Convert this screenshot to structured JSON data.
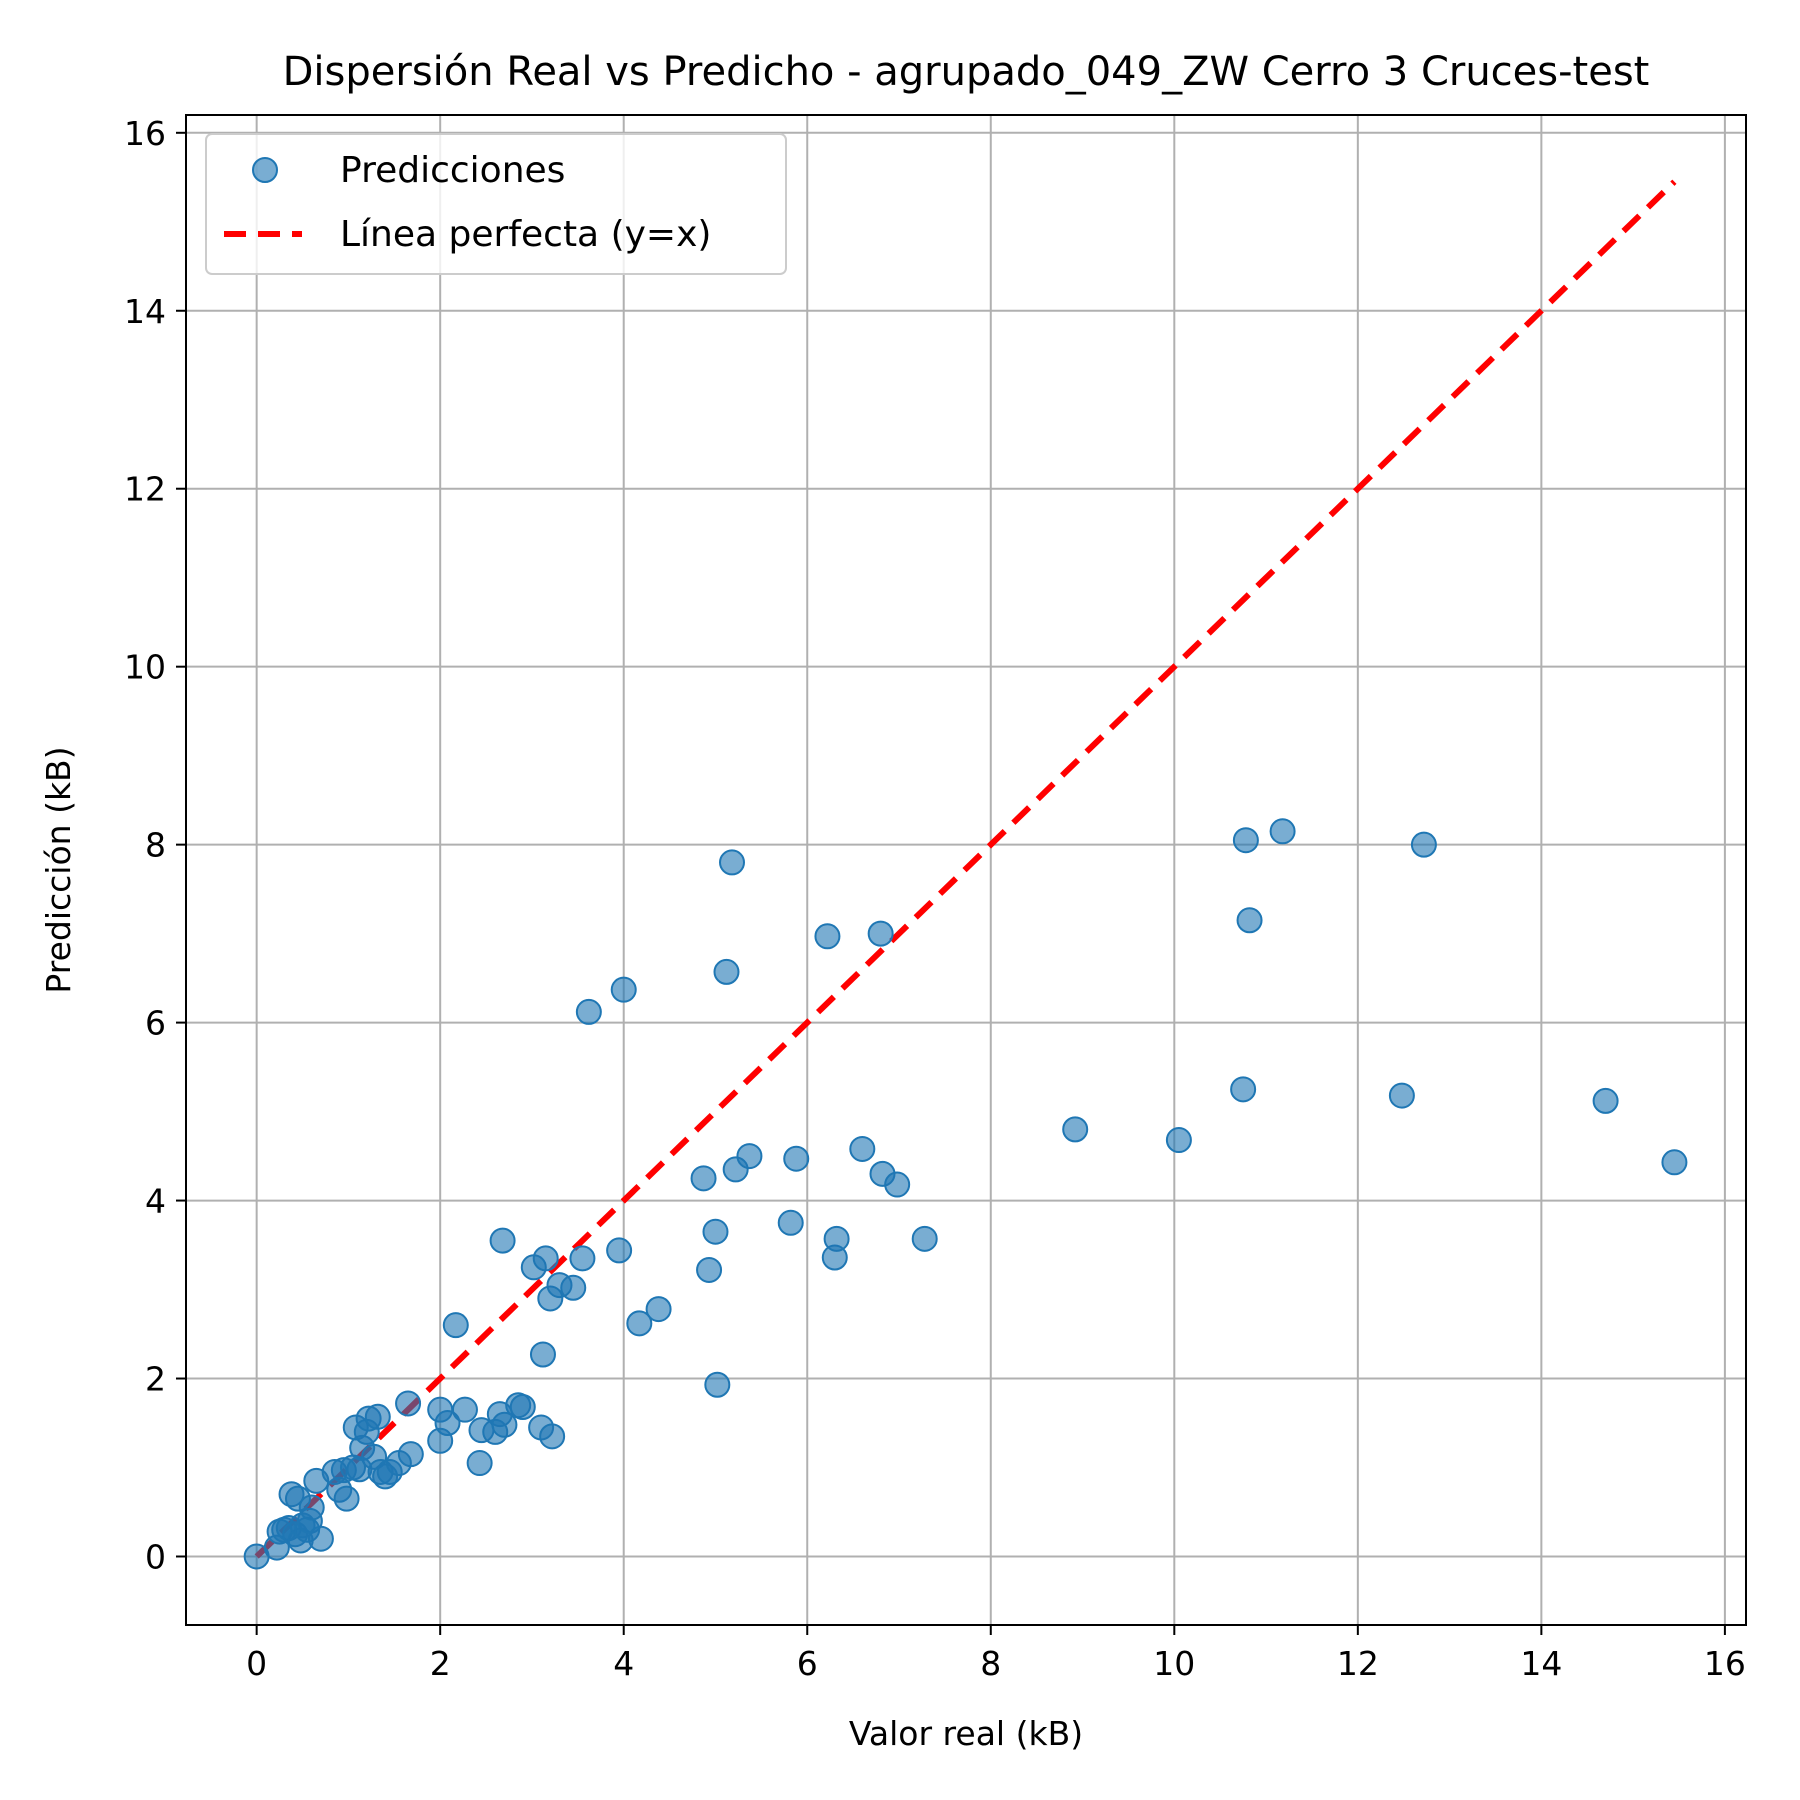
{
  "chart_data": {
    "type": "scatter",
    "title": "Dispersión Real vs Predicho - agrupado_049_ZW Cerro 3 Cruces-test",
    "xlabel": "Valor real (kB)",
    "ylabel": "Predicción (kB)",
    "xlim": [
      -0.77,
      16.23
    ],
    "ylim": [
      -0.77,
      16.2
    ],
    "xticks": [
      0,
      2,
      4,
      6,
      8,
      10,
      12,
      14,
      16
    ],
    "yticks": [
      0,
      2,
      4,
      6,
      8,
      10,
      12,
      14,
      16
    ],
    "grid": true,
    "legend_position": "upper-left",
    "colors": {
      "points": "#1f77b4",
      "line": "#ff0000",
      "grid": "#b0b0b0"
    },
    "series": [
      {
        "name": "Predicciones",
        "kind": "scatter",
        "points": [
          [
            0.0,
            0.0
          ],
          [
            0.22,
            0.1
          ],
          [
            0.25,
            0.28
          ],
          [
            0.3,
            0.3
          ],
          [
            0.35,
            0.32
          ],
          [
            0.38,
            0.7
          ],
          [
            0.42,
            0.25
          ],
          [
            0.45,
            0.65
          ],
          [
            0.48,
            0.18
          ],
          [
            0.5,
            0.35
          ],
          [
            0.55,
            0.3
          ],
          [
            0.58,
            0.4
          ],
          [
            0.6,
            0.55
          ],
          [
            0.65,
            0.85
          ],
          [
            0.7,
            0.2
          ],
          [
            0.85,
            0.95
          ],
          [
            0.9,
            0.75
          ],
          [
            0.95,
            0.97
          ],
          [
            0.98,
            0.65
          ],
          [
            1.05,
            1.0
          ],
          [
            1.08,
            1.45
          ],
          [
            1.12,
            0.98
          ],
          [
            1.15,
            1.22
          ],
          [
            1.2,
            1.4
          ],
          [
            1.22,
            1.55
          ],
          [
            1.28,
            1.12
          ],
          [
            1.32,
            1.57
          ],
          [
            1.35,
            0.95
          ],
          [
            1.4,
            0.9
          ],
          [
            1.45,
            0.95
          ],
          [
            1.55,
            1.05
          ],
          [
            1.65,
            1.72
          ],
          [
            1.68,
            1.15
          ],
          [
            2.0,
            1.65
          ],
          [
            2.0,
            1.3
          ],
          [
            2.08,
            1.5
          ],
          [
            2.17,
            2.6
          ],
          [
            2.27,
            1.65
          ],
          [
            2.43,
            1.05
          ],
          [
            2.45,
            1.42
          ],
          [
            2.6,
            1.4
          ],
          [
            2.65,
            1.6
          ],
          [
            2.68,
            3.55
          ],
          [
            2.7,
            1.48
          ],
          [
            2.85,
            1.7
          ],
          [
            2.9,
            1.68
          ],
          [
            3.02,
            3.25
          ],
          [
            3.1,
            1.45
          ],
          [
            3.12,
            2.27
          ],
          [
            3.15,
            3.35
          ],
          [
            3.2,
            2.9
          ],
          [
            3.22,
            1.35
          ],
          [
            3.3,
            3.05
          ],
          [
            3.45,
            3.02
          ],
          [
            3.55,
            3.35
          ],
          [
            3.62,
            6.12
          ],
          [
            3.95,
            3.44
          ],
          [
            4.0,
            6.37
          ],
          [
            4.17,
            2.62
          ],
          [
            4.38,
            2.78
          ],
          [
            4.87,
            4.25
          ],
          [
            4.93,
            3.22
          ],
          [
            5.0,
            3.65
          ],
          [
            5.02,
            1.93
          ],
          [
            5.12,
            6.57
          ],
          [
            5.18,
            7.8
          ],
          [
            5.22,
            4.35
          ],
          [
            5.37,
            4.5
          ],
          [
            5.82,
            3.75
          ],
          [
            5.88,
            4.47
          ],
          [
            6.22,
            6.97
          ],
          [
            6.3,
            3.36
          ],
          [
            6.32,
            3.57
          ],
          [
            6.6,
            4.58
          ],
          [
            6.8,
            7.0
          ],
          [
            6.82,
            4.3
          ],
          [
            6.98,
            4.18
          ],
          [
            7.28,
            3.57
          ],
          [
            8.92,
            4.8
          ],
          [
            10.05,
            4.68
          ],
          [
            10.75,
            5.25
          ],
          [
            10.78,
            8.05
          ],
          [
            10.82,
            7.15
          ],
          [
            11.18,
            8.15
          ],
          [
            12.48,
            5.18
          ],
          [
            12.72,
            8.0
          ],
          [
            14.7,
            5.12
          ],
          [
            15.45,
            4.43
          ]
        ]
      },
      {
        "name": "Línea perfecta (y=x)",
        "kind": "line",
        "points": [
          [
            0.0,
            0.0
          ],
          [
            15.45,
            15.45
          ]
        ]
      }
    ]
  }
}
